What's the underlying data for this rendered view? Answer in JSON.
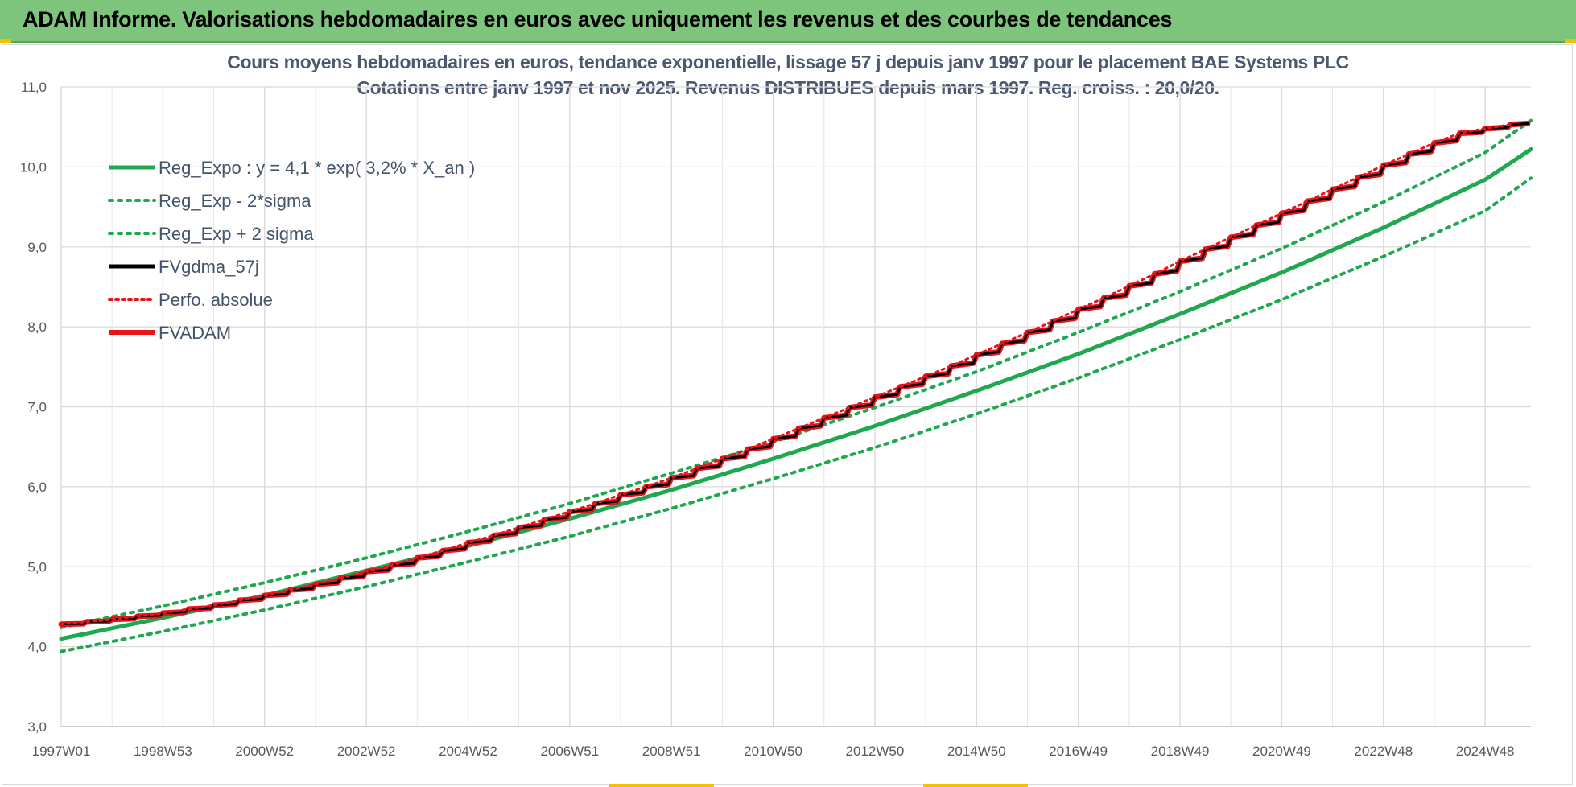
{
  "banner": {
    "title": "ADAM Informe. Valorisations hebdomadaires en euros avec uniquement les revenus et des courbes de tendances"
  },
  "colors": {
    "banner": "#7dc57d",
    "green": "#1fa84f",
    "red": "#e8141a",
    "black": "#000000",
    "grid": "#d9d9d9"
  },
  "chart_data": {
    "type": "line",
    "title": "Cours moyens hebdomadaires en euros, tendance exponentielle, lissage 57 j depuis janv 1997 pour le placement BAE Systems PLC",
    "subtitle": "Cotations entre janv 1997 et nov 2025. Revenus DISTRIBUES depuis mars 1997. Reg. croiss. : 20,0/20.",
    "xlabel": "",
    "ylabel": "",
    "x_range": [
      1997.0,
      2025.9
    ],
    "ylim": [
      3.0,
      11.0
    ],
    "y_ticks": [
      "3,0",
      "4,0",
      "5,0",
      "6,0",
      "7,0",
      "8,0",
      "9,0",
      "10,0",
      "11,0"
    ],
    "x_ticks": [
      {
        "label": "1997W01",
        "x": 1997.0
      },
      {
        "label": "1998W53",
        "x": 1999.0
      },
      {
        "label": "2000W52",
        "x": 2001.0
      },
      {
        "label": "2002W52",
        "x": 2003.0
      },
      {
        "label": "2004W52",
        "x": 2005.0
      },
      {
        "label": "2006W51",
        "x": 2007.0
      },
      {
        "label": "2008W51",
        "x": 2009.0
      },
      {
        "label": "2010W50",
        "x": 2011.0
      },
      {
        "label": "2012W50",
        "x": 2013.0
      },
      {
        "label": "2014W50",
        "x": 2015.0
      },
      {
        "label": "2016W49",
        "x": 2017.0
      },
      {
        "label": "2018W49",
        "x": 2019.0
      },
      {
        "label": "2020W49",
        "x": 2021.0
      },
      {
        "label": "2022W48",
        "x": 2023.0
      },
      {
        "label": "2024W48",
        "x": 2025.0
      }
    ],
    "grid": true,
    "legend_position": "top-left",
    "series": [
      {
        "name": "Reg_Expo : y = 4,1 * exp( 3,2% *  X_an )",
        "style": "solid",
        "color": "#1fa84f",
        "x": [
          1997,
          1999,
          2001,
          2003,
          2005,
          2007,
          2009,
          2011,
          2013,
          2015,
          2017,
          2019,
          2021,
          2023,
          2025,
          2025.9
        ],
        "y": [
          4.1,
          4.36,
          4.64,
          4.95,
          5.26,
          5.6,
          5.96,
          6.35,
          6.76,
          7.2,
          7.66,
          8.16,
          8.68,
          9.24,
          9.84,
          10.22
        ]
      },
      {
        "name": "Reg_Exp - 2*sigma",
        "style": "dotted",
        "color": "#1fa84f",
        "x": [
          1997,
          1999,
          2001,
          2003,
          2005,
          2007,
          2009,
          2011,
          2013,
          2015,
          2017,
          2019,
          2021,
          2023,
          2025,
          2025.9
        ],
        "y": [
          3.94,
          4.19,
          4.46,
          4.75,
          5.06,
          5.38,
          5.73,
          6.1,
          6.49,
          6.91,
          7.36,
          7.84,
          8.34,
          8.88,
          9.45,
          9.86
        ]
      },
      {
        "name": "Reg_Exp + 2 sigma",
        "style": "dotted",
        "color": "#1fa84f",
        "x": [
          1997,
          1999,
          2001,
          2003,
          2005,
          2007,
          2009,
          2011,
          2013,
          2015,
          2017,
          2019,
          2021,
          2023,
          2025,
          2025.9
        ],
        "y": [
          4.24,
          4.51,
          4.8,
          5.11,
          5.44,
          5.79,
          6.17,
          6.56,
          6.99,
          7.44,
          7.93,
          8.44,
          8.98,
          9.56,
          10.18,
          10.58
        ]
      },
      {
        "name": "FVgdma_57j",
        "style": "step",
        "color": "#000000",
        "x": [
          1997.0,
          1997.5,
          1998.0,
          1998.5,
          1999.0,
          1999.5,
          2000.0,
          2000.5,
          2001.0,
          2001.5,
          2002.0,
          2002.5,
          2003.0,
          2003.5,
          2004.0,
          2004.5,
          2005.0,
          2005.5,
          2006.0,
          2006.5,
          2007.0,
          2007.5,
          2008.0,
          2008.5,
          2009.0,
          2009.5,
          2010.0,
          2010.5,
          2011.0,
          2011.5,
          2012.0,
          2012.5,
          2013.0,
          2013.5,
          2014.0,
          2014.5,
          2015.0,
          2015.5,
          2016.0,
          2016.5,
          2017.0,
          2017.5,
          2018.0,
          2018.5,
          2019.0,
          2019.5,
          2020.0,
          2020.5,
          2021.0,
          2021.5,
          2022.0,
          2022.5,
          2023.0,
          2023.5,
          2024.0,
          2024.5,
          2025.0,
          2025.5
        ],
        "y": [
          4.28,
          4.31,
          4.34,
          4.38,
          4.42,
          4.47,
          4.52,
          4.58,
          4.64,
          4.71,
          4.78,
          4.86,
          4.94,
          5.02,
          5.11,
          5.2,
          5.3,
          5.39,
          5.49,
          5.59,
          5.69,
          5.79,
          5.9,
          6.0,
          6.11,
          6.23,
          6.35,
          6.47,
          6.6,
          6.73,
          6.86,
          6.99,
          7.12,
          7.25,
          7.38,
          7.51,
          7.65,
          7.79,
          7.93,
          8.07,
          8.22,
          8.36,
          8.51,
          8.66,
          8.82,
          8.97,
          9.12,
          9.27,
          9.42,
          9.57,
          9.72,
          9.87,
          10.02,
          10.16,
          10.3,
          10.42,
          10.48,
          10.53
        ]
      },
      {
        "name": "Perfo. absolue",
        "style": "dotted",
        "color": "#e8141a",
        "x": [
          1997.0,
          1997.5,
          1998.0,
          1998.5,
          1999.0,
          1999.5,
          2000.0,
          2000.5,
          2001.0,
          2001.5,
          2002.0,
          2002.5,
          2003.0,
          2003.5,
          2004.0,
          2004.5,
          2005.0,
          2005.5,
          2006.0,
          2006.5,
          2007.0,
          2007.5,
          2008.0,
          2008.5,
          2009.0,
          2009.5,
          2010.0,
          2010.5,
          2011.0,
          2011.5,
          2012.0,
          2012.5,
          2013.0,
          2013.5,
          2014.0,
          2014.5,
          2015.0,
          2015.5,
          2016.0,
          2016.5,
          2017.0,
          2017.5,
          2018.0,
          2018.5,
          2019.0,
          2019.5,
          2020.0,
          2020.5,
          2021.0,
          2021.5,
          2022.0,
          2022.5,
          2023.0,
          2023.5,
          2024.0,
          2024.5,
          2025.0,
          2025.5
        ],
        "y": [
          4.28,
          4.31,
          4.34,
          4.38,
          4.42,
          4.47,
          4.52,
          4.58,
          4.64,
          4.71,
          4.78,
          4.86,
          4.94,
          5.02,
          5.11,
          5.2,
          5.3,
          5.39,
          5.49,
          5.59,
          5.69,
          5.79,
          5.9,
          6.0,
          6.11,
          6.23,
          6.35,
          6.47,
          6.6,
          6.73,
          6.86,
          6.99,
          7.12,
          7.25,
          7.38,
          7.51,
          7.65,
          7.79,
          7.93,
          8.07,
          8.22,
          8.36,
          8.51,
          8.66,
          8.82,
          8.97,
          9.12,
          9.27,
          9.42,
          9.57,
          9.72,
          9.87,
          10.02,
          10.16,
          10.3,
          10.42,
          10.48,
          10.53
        ]
      },
      {
        "name": "FVADAM",
        "style": "step",
        "color": "#e8141a",
        "x": [
          1997.0,
          1997.5,
          1998.0,
          1998.5,
          1999.0,
          1999.5,
          2000.0,
          2000.5,
          2001.0,
          2001.5,
          2002.0,
          2002.5,
          2003.0,
          2003.5,
          2004.0,
          2004.5,
          2005.0,
          2005.5,
          2006.0,
          2006.5,
          2007.0,
          2007.5,
          2008.0,
          2008.5,
          2009.0,
          2009.5,
          2010.0,
          2010.5,
          2011.0,
          2011.5,
          2012.0,
          2012.5,
          2013.0,
          2013.5,
          2014.0,
          2014.5,
          2015.0,
          2015.5,
          2016.0,
          2016.5,
          2017.0,
          2017.5,
          2018.0,
          2018.5,
          2019.0,
          2019.5,
          2020.0,
          2020.5,
          2021.0,
          2021.5,
          2022.0,
          2022.5,
          2023.0,
          2023.5,
          2024.0,
          2024.5,
          2025.0,
          2025.5
        ],
        "y": [
          4.28,
          4.31,
          4.34,
          4.38,
          4.42,
          4.47,
          4.52,
          4.58,
          4.64,
          4.71,
          4.78,
          4.86,
          4.94,
          5.02,
          5.11,
          5.2,
          5.3,
          5.39,
          5.49,
          5.59,
          5.69,
          5.79,
          5.9,
          6.0,
          6.11,
          6.23,
          6.35,
          6.47,
          6.6,
          6.73,
          6.86,
          6.99,
          7.12,
          7.25,
          7.38,
          7.51,
          7.65,
          7.79,
          7.93,
          8.07,
          8.22,
          8.36,
          8.51,
          8.66,
          8.82,
          8.97,
          9.12,
          9.27,
          9.42,
          9.57,
          9.72,
          9.87,
          10.02,
          10.16,
          10.3,
          10.42,
          10.48,
          10.53
        ]
      }
    ]
  }
}
